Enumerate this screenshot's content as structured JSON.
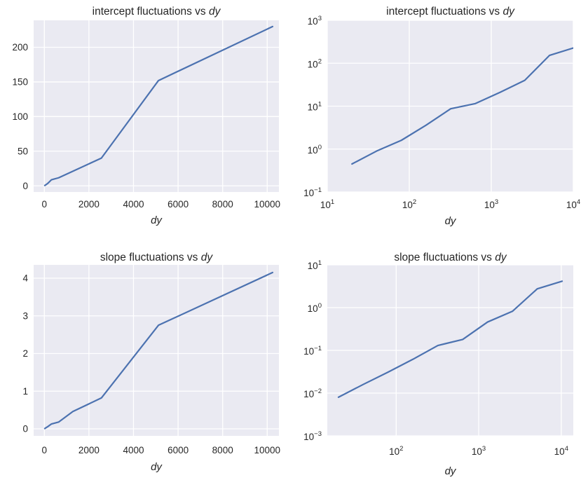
{
  "figure": {
    "background": "#ffffff",
    "layout": "2x2 subplot grid"
  },
  "colors": {
    "line": "#4c72b0",
    "axes_background": "#eaeaf2",
    "grid": "#ffffff",
    "text": "#262626"
  },
  "chart_data": [
    {
      "id": "intercept-linear",
      "type": "line",
      "title": "intercept fluctuations vs dy",
      "title_prefix": "intercept fluctuations vs ",
      "title_italic": "dy",
      "xlabel": "dy",
      "x_scale": "linear",
      "y_scale": "linear",
      "x": [
        20,
        40,
        80,
        160,
        320,
        640,
        1280,
        2560,
        5120,
        10240
      ],
      "y": [
        0.45,
        0.9,
        1.6,
        3.6,
        8.7,
        11.5,
        21,
        40,
        152,
        230
      ],
      "xlim": [
        -480,
        10525
      ],
      "ylim": [
        -9,
        239
      ],
      "xticks": [
        0,
        2000,
        4000,
        6000,
        8000,
        10000
      ],
      "xtick_labels": [
        "0",
        "2000",
        "4000",
        "6000",
        "8000",
        "10000"
      ],
      "yticks": [
        0,
        50,
        100,
        150,
        200
      ],
      "ytick_labels": [
        "0",
        "50",
        "100",
        "150",
        "200"
      ],
      "grid": true,
      "legend": "none"
    },
    {
      "id": "intercept-loglog",
      "type": "line",
      "title": "intercept fluctuations vs dy",
      "title_prefix": "intercept fluctuations vs ",
      "title_italic": "dy",
      "xlabel": "dy",
      "x_scale": "log",
      "y_scale": "log",
      "x": [
        20,
        40,
        80,
        160,
        320,
        640,
        1280,
        2560,
        5120,
        10240
      ],
      "y": [
        0.45,
        0.9,
        1.6,
        3.6,
        8.7,
        11.5,
        21,
        40,
        152,
        230
      ],
      "xlim_log10": [
        1,
        4
      ],
      "ylim_log10": [
        -1,
        3
      ],
      "xtick_exp": [
        1,
        2,
        3,
        4
      ],
      "xtick_labels": [
        "10¹",
        "10²",
        "10³",
        "10⁴"
      ],
      "ytick_exp": [
        -1,
        0,
        1,
        2,
        3
      ],
      "ytick_labels": [
        "10⁻¹",
        "10⁰",
        "10¹",
        "10²",
        "10³"
      ],
      "grid": true,
      "legend": "none"
    },
    {
      "id": "slope-linear",
      "type": "line",
      "title": "slope fluctuations vs dy",
      "title_prefix": "slope fluctuations vs ",
      "title_italic": "dy",
      "xlabel": "dy",
      "x_scale": "linear",
      "y_scale": "linear",
      "x": [
        20,
        40,
        80,
        160,
        320,
        640,
        1280,
        2560,
        5120,
        10240
      ],
      "y": [
        0.008,
        0.016,
        0.031,
        0.062,
        0.13,
        0.18,
        0.46,
        0.82,
        2.75,
        4.15
      ],
      "xlim": [
        -480,
        10525
      ],
      "ylim": [
        -0.186,
        4.353
      ],
      "xticks": [
        0,
        2000,
        4000,
        6000,
        8000,
        10000
      ],
      "xtick_labels": [
        "0",
        "2000",
        "4000",
        "6000",
        "8000",
        "10000"
      ],
      "yticks": [
        0,
        1,
        2,
        3,
        4
      ],
      "ytick_labels": [
        "0",
        "1",
        "2",
        "3",
        "4"
      ],
      "grid": true,
      "legend": "none"
    },
    {
      "id": "slope-loglog",
      "type": "line",
      "title": "slope fluctuations vs dy",
      "title_prefix": "slope fluctuations vs ",
      "title_italic": "dy",
      "xlabel": "dy",
      "x_scale": "log",
      "y_scale": "log",
      "x": [
        20,
        40,
        80,
        160,
        320,
        640,
        1280,
        2560,
        5120,
        10240
      ],
      "y": [
        0.008,
        0.016,
        0.031,
        0.062,
        0.13,
        0.18,
        0.46,
        0.82,
        2.75,
        4.15
      ],
      "xlim_log10": [
        1.1656,
        4.1458
      ],
      "ylim_log10": [
        -3,
        1
      ],
      "xtick_exp": [
        2,
        3,
        4
      ],
      "xtick_labels": [
        "10²",
        "10³",
        "10⁴"
      ],
      "ytick_exp": [
        -3,
        -2,
        -1,
        0,
        1
      ],
      "ytick_labels": [
        "10⁻³",
        "10⁻²",
        "10⁻¹",
        "10⁰",
        "10¹"
      ],
      "grid": true,
      "legend": "none"
    }
  ]
}
